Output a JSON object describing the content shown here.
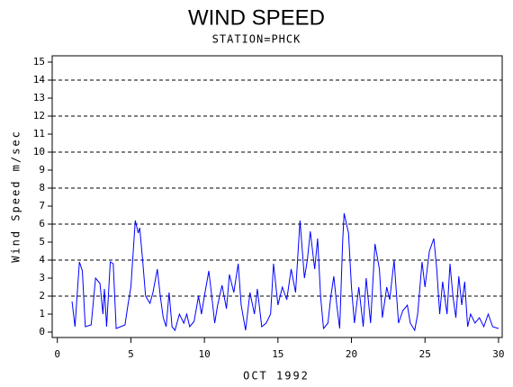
{
  "chart_data": {
    "type": "line",
    "title": "WIND SPEED",
    "subtitle": "STATION=PHCK",
    "x_label": "OCT 1992",
    "y_label": "Wind Speed m/sec",
    "xlim": [
      -0.35,
      30.25
    ],
    "xticks": [
      0,
      5,
      10,
      15,
      20,
      25,
      30
    ],
    "ylim": [
      -0.3,
      15.35
    ],
    "yticks": [
      0,
      1,
      2,
      3,
      4,
      5,
      6,
      7,
      8,
      9,
      10,
      11,
      12,
      13,
      14,
      15
    ],
    "ygrid": [
      2,
      4,
      6,
      8,
      10,
      12,
      14
    ],
    "series": [
      {
        "name": "Wind Speed",
        "color": "#0000ff",
        "x": [
          1.0,
          1.2,
          1.5,
          1.7,
          1.9,
          2.3,
          2.6,
          2.9,
          3.1,
          3.2,
          3.35,
          3.6,
          3.8,
          4.0,
          4.6,
          4.8,
          5.0,
          5.3,
          5.5,
          5.6,
          5.8,
          6.0,
          6.3,
          6.5,
          6.8,
          7.0,
          7.2,
          7.4,
          7.6,
          7.8,
          8.0,
          8.3,
          8.6,
          8.8,
          9.0,
          9.3,
          9.6,
          9.8,
          10.0,
          10.3,
          10.5,
          10.7,
          10.9,
          11.2,
          11.5,
          11.7,
          12.0,
          12.3,
          12.5,
          12.8,
          13.1,
          13.4,
          13.6,
          13.9,
          14.2,
          14.5,
          14.7,
          15.0,
          15.3,
          15.6,
          15.9,
          16.2,
          16.5,
          16.8,
          17.0,
          17.2,
          17.5,
          17.7,
          17.9,
          18.1,
          18.4,
          18.6,
          18.8,
          19.0,
          19.2,
          19.4,
          19.5,
          19.8,
          20.0,
          20.2,
          20.5,
          20.8,
          21.0,
          21.3,
          21.6,
          21.9,
          22.1,
          22.4,
          22.6,
          22.9,
          23.2,
          23.5,
          23.8,
          24.0,
          24.3,
          24.5,
          24.8,
          25.0,
          25.3,
          25.6,
          25.8,
          26.0,
          26.2,
          26.5,
          26.7,
          26.9,
          27.1,
          27.3,
          27.5,
          27.7,
          27.9,
          28.1,
          28.4,
          28.7,
          29.0,
          29.3,
          29.6,
          30.0
        ],
        "values": [
          1.7,
          0.3,
          3.9,
          3.4,
          0.3,
          0.4,
          3.0,
          2.7,
          1.0,
          2.4,
          0.3,
          3.9,
          3.8,
          0.2,
          0.4,
          1.5,
          2.5,
          6.2,
          5.5,
          5.8,
          4.0,
          2.0,
          1.6,
          2.2,
          3.5,
          2.0,
          0.8,
          0.3,
          2.2,
          0.3,
          0.1,
          1.0,
          0.5,
          1.0,
          0.3,
          0.6,
          2.0,
          1.0,
          2.0,
          3.4,
          2.0,
          0.5,
          1.5,
          2.6,
          1.3,
          3.2,
          2.2,
          3.8,
          1.5,
          0.1,
          2.2,
          1.0,
          2.4,
          0.3,
          0.5,
          1.0,
          3.8,
          1.5,
          2.5,
          1.8,
          3.5,
          2.2,
          6.2,
          3.0,
          4.0,
          5.6,
          3.5,
          5.2,
          2.0,
          0.2,
          0.5,
          2.0,
          3.1,
          1.5,
          0.2,
          5.0,
          6.6,
          5.5,
          2.5,
          0.5,
          2.5,
          0.3,
          3.0,
          0.5,
          4.9,
          3.5,
          0.8,
          2.5,
          1.8,
          4.0,
          0.5,
          1.2,
          1.5,
          0.5,
          0.1,
          1.0,
          3.9,
          2.5,
          4.5,
          5.2,
          3.5,
          1.0,
          2.8,
          1.0,
          3.8,
          2.0,
          0.8,
          3.1,
          1.5,
          2.8,
          0.3,
          1.0,
          0.5,
          0.8,
          0.3,
          1.0,
          0.3,
          0.2
        ]
      }
    ]
  }
}
